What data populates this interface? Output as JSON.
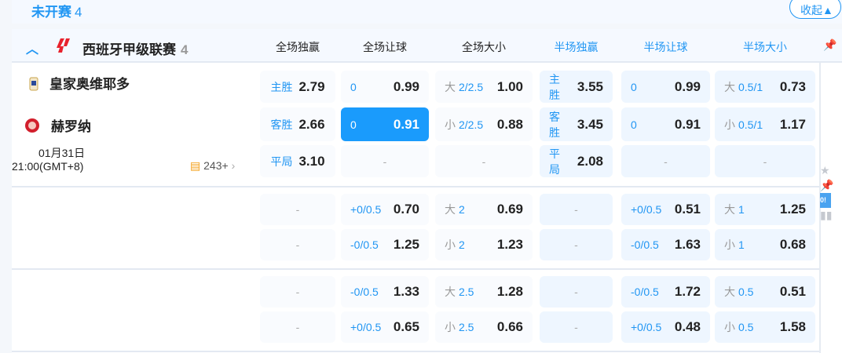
{
  "section": {
    "title": "未开赛",
    "count": "4",
    "collapse": "收起▲"
  },
  "league": {
    "name": "西班牙甲级联赛",
    "count": "4",
    "logo_color": "#e8222d"
  },
  "columns": [
    {
      "label": "全场独赢",
      "color": "#222"
    },
    {
      "label": "全场让球",
      "color": "#222"
    },
    {
      "label": "全场大小",
      "color": "#222"
    },
    {
      "label": "半场独赢",
      "color": "#2196f3"
    },
    {
      "label": "半场让球",
      "color": "#2196f3"
    },
    {
      "label": "半场大小",
      "color": "#2196f3"
    }
  ],
  "match": {
    "home": "皇家奥维耶多",
    "away": "赫罗纳",
    "date": "01月31日",
    "time": "21:00(GMT+8)",
    "markets": "243+"
  },
  "blocks": [
    [
      [
        {
          "l": "主胜",
          "v": "2.79"
        },
        {
          "l": "0",
          "v": "0.99"
        },
        {
          "p": "大",
          "l": "2/2.5",
          "v": "1.00"
        },
        {
          "l": "主胜",
          "v": "3.55"
        },
        {
          "l": "0",
          "v": "0.99"
        },
        {
          "p": "大",
          "l": "0.5/1",
          "v": "0.73"
        }
      ],
      [
        {
          "l": "客胜",
          "v": "2.66"
        },
        {
          "l": "0",
          "v": "0.91",
          "sel": true
        },
        {
          "p": "小",
          "l": "2/2.5",
          "v": "0.88"
        },
        {
          "l": "客胜",
          "v": "3.45"
        },
        {
          "l": "0",
          "v": "0.91"
        },
        {
          "p": "小",
          "l": "0.5/1",
          "v": "1.17"
        }
      ],
      [
        {
          "l": "平局",
          "v": "3.10"
        },
        {
          "e": "-"
        },
        {
          "e": "-"
        },
        {
          "l": "平局",
          "v": "2.08"
        },
        {
          "e": "-"
        },
        {
          "e": "-"
        }
      ]
    ],
    [
      [
        {
          "e": "-"
        },
        {
          "l": "+0/0.5",
          "v": "0.70"
        },
        {
          "p": "大",
          "l": "2",
          "v": "0.69"
        },
        {
          "e": "-"
        },
        {
          "l": "+0/0.5",
          "v": "0.51"
        },
        {
          "p": "大",
          "l": "1",
          "v": "1.25"
        }
      ],
      [
        {
          "e": "-"
        },
        {
          "l": "-0/0.5",
          "v": "1.25"
        },
        {
          "p": "小",
          "l": "2",
          "v": "1.23"
        },
        {
          "e": "-"
        },
        {
          "l": "-0/0.5",
          "v": "1.63"
        },
        {
          "p": "小",
          "l": "1",
          "v": "0.68"
        }
      ]
    ],
    [
      [
        {
          "e": "-"
        },
        {
          "l": "-0/0.5",
          "v": "1.33"
        },
        {
          "p": "大",
          "l": "2.5",
          "v": "1.28"
        },
        {
          "e": "-"
        },
        {
          "l": "-0/0.5",
          "v": "1.72"
        },
        {
          "p": "大",
          "l": "0.5",
          "v": "0.51"
        }
      ],
      [
        {
          "e": "-"
        },
        {
          "l": "+0/0.5",
          "v": "0.65"
        },
        {
          "p": "小",
          "l": "2.5",
          "v": "0.66"
        },
        {
          "e": "-"
        },
        {
          "l": "+0/0.5",
          "v": "0.48"
        },
        {
          "p": "小",
          "l": "0.5",
          "v": "1.58"
        }
      ]
    ]
  ]
}
